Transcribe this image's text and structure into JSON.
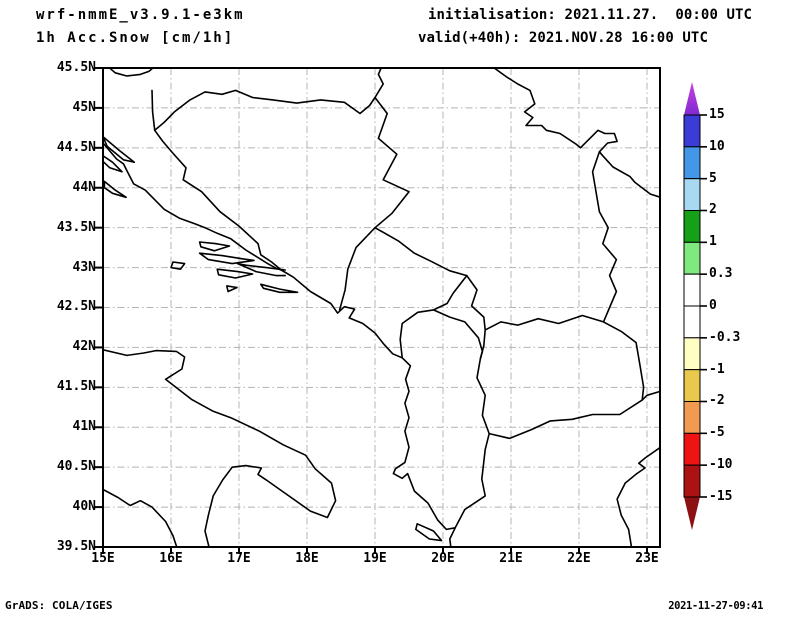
{
  "header": {
    "model": "wrf-nmmE_v3.9.1-e3km",
    "field": "1h Acc.Snow [cm/1h]",
    "initialisation": "initialisation: 2021.11.27.  00:00 UTC",
    "valid": "valid(+40h): 2021.NOV.28 16:00 UTC"
  },
  "axes": {
    "lat_labels": [
      "45.5N",
      "45N",
      "44.5N",
      "44N",
      "43.5N",
      "43N",
      "42.5N",
      "42N",
      "41.5N",
      "41N",
      "40.5N",
      "40N",
      "39.5N"
    ],
    "lon_labels": [
      "15E",
      "16E",
      "17E",
      "18E",
      "19E",
      "20E",
      "21E",
      "22E",
      "23E"
    ],
    "lat_range_deg": [
      39.5,
      45.5
    ],
    "lon_range_deg": [
      15.0,
      23.2
    ]
  },
  "colorbar": {
    "tick_labels": [
      "15",
      "10",
      "5",
      "2",
      "1",
      "0.3",
      "0",
      "-0.3",
      "-1",
      "-2",
      "-5",
      "-10",
      "-15"
    ],
    "segment_colors_top_to_bottom": [
      "#3b3bd8",
      "#4397e6",
      "#a8d8f2",
      "#15a018",
      "#7fe97f",
      "#ffffff",
      "#ffffff",
      "#ffffc4",
      "#e9c84e",
      "#f29a50",
      "#ee1414",
      "#ac1114"
    ],
    "arrow_top_colors": [
      "#c93fdc",
      "#7f2bd2"
    ],
    "arrow_bottom_color": "#8d1013"
  },
  "footer": {
    "credit": "GrADS: COLA/IGES",
    "timestamp": "2021-11-27-09:41"
  },
  "map_style": {
    "line_color": "#000000",
    "grid_color": "#b4b4b4",
    "frame_color": "#000000"
  }
}
